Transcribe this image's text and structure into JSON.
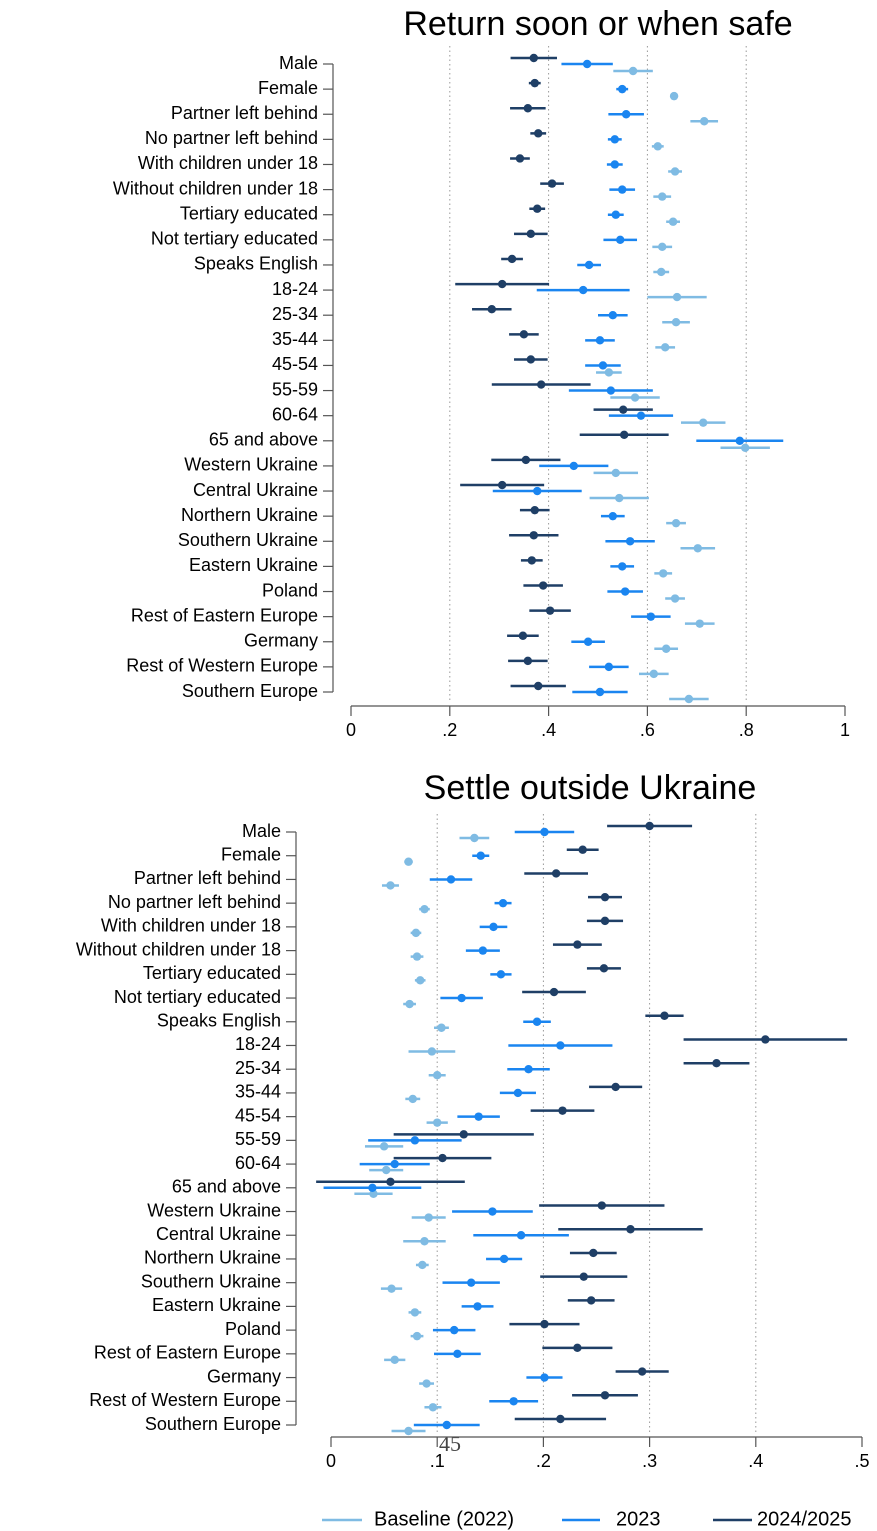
{
  "chart_data": [
    {
      "type": "errorbar",
      "title": "Return soon or when safe",
      "categories": [
        "Male",
        "Female",
        "Partner left behind",
        "No partner left behind",
        "With children under 18",
        "Without children under 18",
        "Tertiary educated",
        "Not tertiary educated",
        "Speaks English",
        "18-24",
        "25-34",
        "35-44",
        "45-54",
        "55-59",
        "60-64",
        "65 and above",
        "Western Ukraine",
        "Central Ukraine",
        "Northern Ukraine",
        "Southern Ukraine",
        "Eastern Ukraine",
        "Poland",
        "Rest of Eastern Europe",
        "Germany",
        "Rest of Western Europe",
        "Southern Europe"
      ],
      "series": [
        {
          "color": "#7fbbe3",
          "values": [
            0.571,
            0.654,
            0.715,
            0.621,
            0.656,
            0.63,
            0.652,
            0.63,
            0.628,
            0.66,
            0.658,
            0.636,
            0.522,
            0.575,
            0.713,
            0.798,
            0.536,
            0.543,
            0.658,
            0.702,
            0.632,
            0.656,
            0.706,
            0.638,
            0.613,
            0.684
          ],
          "errors": [
            0.04,
            0.008,
            0.028,
            0.012,
            0.014,
            0.018,
            0.014,
            0.02,
            0.016,
            0.06,
            0.028,
            0.02,
            0.026,
            0.05,
            0.045,
            0.05,
            0.045,
            0.06,
            0.02,
            0.035,
            0.018,
            0.02,
            0.03,
            0.024,
            0.03,
            0.04
          ]
        },
        {
          "color": "#1a85f0",
          "values": [
            0.478,
            0.549,
            0.557,
            0.534,
            0.534,
            0.549,
            0.536,
            0.545,
            0.482,
            0.47,
            0.53,
            0.504,
            0.51,
            0.526,
            0.587,
            0.787,
            0.451,
            0.377,
            0.53,
            0.565,
            0.549,
            0.555,
            0.607,
            0.48,
            0.522,
            0.504
          ],
          "errors": [
            0.052,
            0.012,
            0.036,
            0.014,
            0.016,
            0.026,
            0.016,
            0.034,
            0.024,
            0.094,
            0.03,
            0.03,
            0.036,
            0.085,
            0.065,
            0.088,
            0.07,
            0.09,
            0.024,
            0.05,
            0.024,
            0.036,
            0.04,
            0.034,
            0.04,
            0.056
          ]
        },
        {
          "color": "#1f3f66",
          "values": [
            0.37,
            0.372,
            0.358,
            0.379,
            0.342,
            0.407,
            0.377,
            0.364,
            0.326,
            0.306,
            0.285,
            0.35,
            0.364,
            0.385,
            0.551,
            0.553,
            0.354,
            0.306,
            0.372,
            0.37,
            0.366,
            0.389,
            0.403,
            0.348,
            0.358,
            0.379
          ],
          "errors": [
            0.047,
            0.012,
            0.036,
            0.016,
            0.02,
            0.024,
            0.016,
            0.034,
            0.022,
            0.095,
            0.04,
            0.03,
            0.034,
            0.1,
            0.06,
            0.09,
            0.07,
            0.085,
            0.03,
            0.05,
            0.022,
            0.04,
            0.042,
            0.032,
            0.04,
            0.056
          ]
        }
      ],
      "xlim": [
        0,
        1
      ],
      "xticks": [
        0,
        {
          "value": 0.2,
          "label": ".2"
        },
        {
          "value": 0.4,
          "label": ".4"
        },
        {
          "value": 0.6,
          "label": ".6"
        },
        {
          "value": 0.8,
          "label": ".8"
        },
        1
      ],
      "grid": true
    },
    {
      "type": "errorbar",
      "title": "Settle outside Ukraine",
      "categories": [
        "Male",
        "Female",
        "Partner left behind",
        "No partner left behind",
        "With children under 18",
        "Without children under 18",
        "Tertiary educated",
        "Not tertiary educated",
        "Speaks English",
        "18-24",
        "25-34",
        "35-44",
        "45-54",
        "55-59",
        "60-64",
        "65 and above",
        "Western Ukraine",
        "Central Ukraine",
        "Northern Ukraine",
        "Southern Ukraine",
        "Eastern Ukraine",
        "Poland",
        "Rest of Eastern Europe",
        "Germany",
        "Rest of Western Europe",
        "Southern Europe"
      ],
      "series": [
        {
          "name": "Baseline (2022)",
          "color": "#7fbbe3",
          "values": [
            0.135,
            0.073,
            0.056,
            0.088,
            0.08,
            0.081,
            0.084,
            0.074,
            0.104,
            0.095,
            0.1,
            0.077,
            0.1,
            0.05,
            0.052,
            0.04,
            0.092,
            0.088,
            0.086,
            0.057,
            0.079,
            0.081,
            0.06,
            0.09,
            0.096,
            0.073
          ],
          "errors": [
            0.014,
            0.004,
            0.008,
            0.005,
            0.005,
            0.006,
            0.005,
            0.006,
            0.007,
            0.022,
            0.008,
            0.007,
            0.01,
            0.018,
            0.016,
            0.018,
            0.016,
            0.02,
            0.006,
            0.01,
            0.006,
            0.006,
            0.01,
            0.007,
            0.008,
            0.016
          ]
        },
        {
          "name": "2023",
          "color": "#1a85f0",
          "values": [
            0.201,
            0.141,
            0.113,
            0.162,
            0.153,
            0.143,
            0.16,
            0.123,
            0.194,
            0.216,
            0.186,
            0.176,
            0.139,
            0.079,
            0.06,
            0.039,
            0.152,
            0.179,
            0.163,
            0.132,
            0.138,
            0.116,
            0.119,
            0.201,
            0.172,
            0.109
          ],
          "errors": [
            0.028,
            0.008,
            0.02,
            0.008,
            0.013,
            0.016,
            0.01,
            0.02,
            0.013,
            0.049,
            0.02,
            0.017,
            0.02,
            0.044,
            0.033,
            0.046,
            0.038,
            0.045,
            0.017,
            0.027,
            0.015,
            0.02,
            0.022,
            0.017,
            0.023,
            0.031
          ]
        },
        {
          "name": "2024/2025",
          "color": "#1f3f66",
          "values": [
            0.3,
            0.237,
            0.212,
            0.258,
            0.258,
            0.232,
            0.257,
            0.21,
            0.314,
            0.409,
            0.363,
            0.268,
            0.218,
            0.125,
            0.105,
            0.056,
            0.255,
            0.282,
            0.247,
            0.238,
            0.245,
            0.201,
            0.232,
            0.293,
            0.258,
            0.216
          ],
          "errors": [
            0.04,
            0.015,
            0.03,
            0.016,
            0.017,
            0.023,
            0.016,
            0.03,
            0.018,
            0.077,
            0.031,
            0.025,
            0.03,
            0.066,
            0.046,
            0.07,
            0.059,
            0.068,
            0.022,
            0.041,
            0.022,
            0.033,
            0.033,
            0.025,
            0.031,
            0.043
          ]
        }
      ],
      "xlim": [
        0,
        0.5
      ],
      "xticks": [
        0,
        {
          "value": 0.1,
          "label": ".1"
        },
        {
          "value": 0.2,
          "label": ".2"
        },
        {
          "value": 0.3,
          "label": ".3"
        },
        {
          "value": 0.4,
          "label": ".4"
        },
        {
          "value": 0.5,
          "label": ".5"
        }
      ],
      "grid": true,
      "annotation": "45"
    }
  ]
}
